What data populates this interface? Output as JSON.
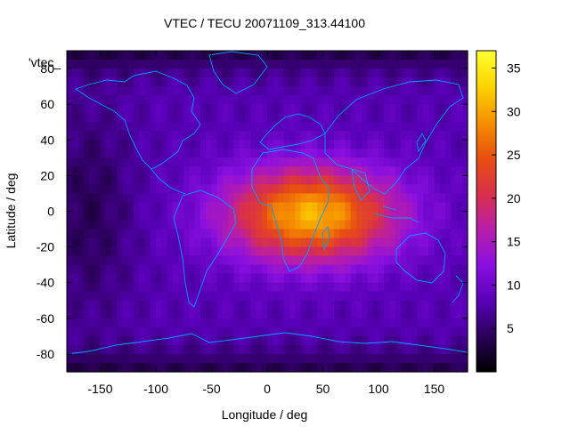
{
  "chart_data": {
    "type": "heatmap",
    "title": "VTEC / TECU 20071109_313.44100",
    "xlabel": "Longitude / deg",
    "ylabel": "Latitude / deg",
    "xlim": [
      -180,
      180
    ],
    "ylim": [
      -90,
      90
    ],
    "xticks": [
      -150,
      -100,
      -50,
      0,
      50,
      100,
      150
    ],
    "yticks": [
      -80,
      -60,
      -40,
      -20,
      0,
      20,
      40,
      60,
      80
    ],
    "legend": "'vtec_",
    "colorbar": {
      "min": 0,
      "max": 37,
      "ticks": [
        5,
        10,
        15,
        20,
        25,
        30,
        35
      ],
      "colormap": [
        "#000000",
        "#2a0058",
        "#5800b8",
        "#8a10e0",
        "#b81ea8",
        "#d8304a",
        "#e85010",
        "#f59000",
        "#fbd400",
        "#ffff30"
      ]
    },
    "field": {
      "background_tecu": 8,
      "anomaly_center_lon": 40,
      "anomaly_center_lat": -2,
      "anomaly_peak_tecu": 23,
      "anomaly_lon_halfwidth": 75,
      "anomaly_lat_halfwidth": 26,
      "night_low_lon": -160,
      "night_low_lat": 0,
      "night_low_tecu": 4,
      "polar_tecu": 3
    },
    "coastline_color": "#00a0ff"
  }
}
